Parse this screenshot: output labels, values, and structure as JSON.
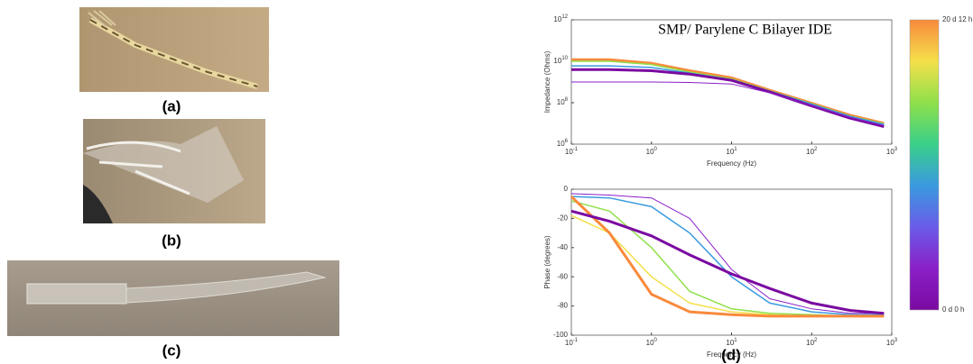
{
  "panels": [
    {
      "label": "(a)"
    },
    {
      "label": "(b)"
    },
    {
      "label": "(c)"
    },
    {
      "label": "(d)"
    }
  ],
  "colorbar": {
    "top_label": "20 d 12 h",
    "bottom_label": "0 d 0 h",
    "colors": [
      "#f98a3c",
      "#f4e04a",
      "#8fe04a",
      "#3ad08a",
      "#3a9ae0",
      "#6a5ce8",
      "#8a20c8",
      "#7a0aa0"
    ]
  },
  "chart_data": [
    {
      "type": "line",
      "title": "SMP/ Parylene C Bilayer IDE",
      "x_label": "Frequency (Hz)",
      "y_label": "Impedance (Ohms)",
      "xscale": "log",
      "yscale": "log",
      "x": [
        0.1,
        0.3,
        1,
        3,
        10,
        30,
        100,
        300,
        800
      ],
      "xlim": [
        0.1,
        1000
      ],
      "ylim": [
        1000000,
        1000000000000
      ],
      "xticks": [
        {
          "value": 0.1,
          "label": "10",
          "power": "-1"
        },
        {
          "value": 1,
          "label": "10",
          "power": "0"
        },
        {
          "value": 10,
          "label": "10",
          "power": "1"
        },
        {
          "value": 100,
          "label": "10",
          "power": "2"
        },
        {
          "value": 1000,
          "label": "10",
          "power": "3"
        }
      ],
      "yticks": [
        {
          "value": 1000000,
          "label": "10",
          "power": "6"
        },
        {
          "value": 100000000,
          "label": "10",
          "power": "8"
        },
        {
          "value": 10000000000,
          "label": "10",
          "power": "10"
        },
        {
          "value": 1000000000000,
          "label": "10",
          "power": "12"
        }
      ],
      "series": [
        {
          "color": "#f98a3c",
          "width": 3,
          "values": [
            12000000000,
            12000000000,
            8000000000,
            3500000000,
            1600000000,
            400000000,
            95000000,
            25000000,
            10000000
          ]
        },
        {
          "color": "#8fe04a",
          "width": 1.5,
          "values": [
            10000000000,
            10000000000,
            7000000000,
            3000000000,
            1400000000,
            370000000,
            90000000,
            23000000,
            9500000
          ]
        },
        {
          "color": "#3a9ae0",
          "width": 1.5,
          "values": [
            6000000000,
            6000000000,
            5000000000,
            2700000000,
            1300000000,
            360000000,
            85000000,
            22000000,
            9000000
          ]
        },
        {
          "color": "#7a0aa0",
          "width": 3,
          "values": [
            4000000000,
            4000000000,
            3500000000,
            2400000000,
            1200000000,
            330000000,
            70000000,
            18000000,
            7000000
          ]
        },
        {
          "color": "#8a20c8",
          "width": 1,
          "values": [
            1000000000,
            1000000000,
            1000000000,
            950000000,
            800000000,
            300000000,
            75000000,
            20000000,
            8000000
          ]
        }
      ]
    },
    {
      "type": "line",
      "x_label": "Frequency (Hz)",
      "y_label": "Phase (degrees)",
      "xscale": "log",
      "x": [
        0.1,
        0.3,
        1,
        3,
        10,
        30,
        100,
        300,
        800
      ],
      "xlim": [
        0.1,
        1000
      ],
      "ylim": [
        -100,
        0
      ],
      "xticks": [
        {
          "value": 0.1,
          "label": "10",
          "power": "-1"
        },
        {
          "value": 1,
          "label": "10",
          "power": "0"
        },
        {
          "value": 10,
          "label": "10",
          "power": "1"
        },
        {
          "value": 100,
          "label": "10",
          "power": "2"
        },
        {
          "value": 1000,
          "label": "10",
          "power": "3"
        }
      ],
      "yticks": [
        -100,
        -80,
        -60,
        -40,
        -20,
        0
      ],
      "series": [
        {
          "color": "#8a20c8",
          "width": 1,
          "values": [
            -3,
            -4,
            -6,
            -20,
            -55,
            -75,
            -82,
            -85,
            -85
          ]
        },
        {
          "color": "#3a9ae0",
          "width": 1.5,
          "values": [
            -5,
            -6,
            -12,
            -30,
            -60,
            -78,
            -84,
            -86,
            -86
          ]
        },
        {
          "color": "#8fe04a",
          "width": 1.5,
          "values": [
            -8,
            -15,
            -40,
            -70,
            -82,
            -85,
            -86,
            -87,
            -87
          ]
        },
        {
          "color": "#f4e04a",
          "width": 1.5,
          "values": [
            -18,
            -30,
            -60,
            -78,
            -84,
            -86,
            -87,
            -87,
            -87
          ]
        },
        {
          "color": "#f98a3c",
          "width": 3,
          "values": [
            -5,
            -30,
            -72,
            -84,
            -86,
            -87,
            -87,
            -87,
            -87
          ]
        },
        {
          "color": "#7a0aa0",
          "width": 3,
          "values": [
            -15,
            -22,
            -32,
            -45,
            -58,
            -68,
            -78,
            -83,
            -85
          ]
        }
      ]
    }
  ]
}
